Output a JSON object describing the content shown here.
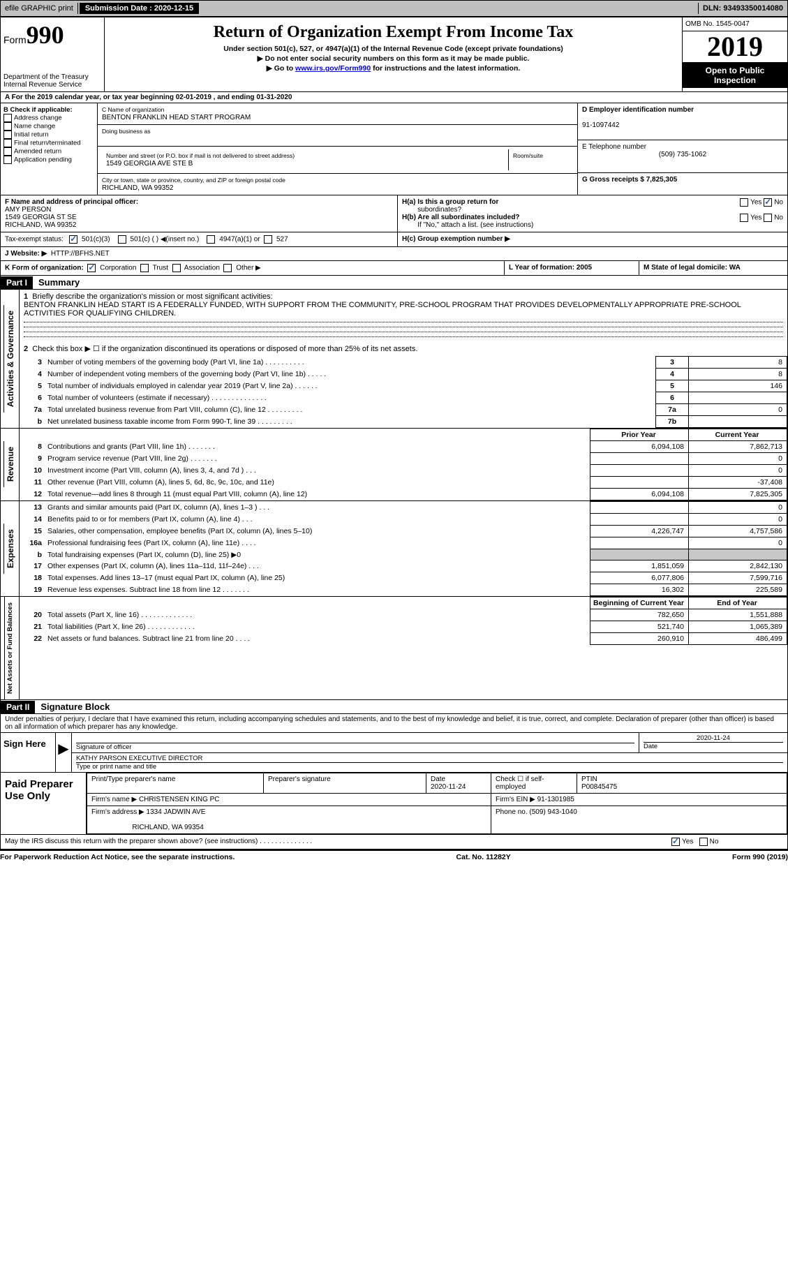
{
  "topbar": {
    "efile": "efile GRAPHIC print",
    "submission_label": "Submission Date : 2020-12-15",
    "dln": "DLN: 93493350014080"
  },
  "header": {
    "form_label": "Form",
    "form_number": "990",
    "dept": "Department of the Treasury",
    "irs": "Internal Revenue Service",
    "title": "Return of Organization Exempt From Income Tax",
    "sub1": "Under section 501(c), 527, or 4947(a)(1) of the Internal Revenue Code (except private foundations)",
    "sub2": "▶ Do not enter social security numbers on this form as it may be made public.",
    "sub3_pre": "▶ Go to ",
    "sub3_link": "www.irs.gov/Form990",
    "sub3_post": " for instructions and the latest information.",
    "omb": "OMB No. 1545-0047",
    "year": "2019",
    "open1": "Open to Public",
    "open2": "Inspection"
  },
  "row_a": "A For the 2019 calendar year, or tax year beginning 02-01-2019   , and ending 01-31-2020",
  "section_b": {
    "title": "B Check if applicable:",
    "opts": [
      "Address change",
      "Name change",
      "Initial return",
      "Final return/terminated",
      "Amended return",
      "Application pending"
    ]
  },
  "section_c": {
    "name_label": "C Name of organization",
    "name": "BENTON FRANKLIN HEAD START PROGRAM",
    "dba": "Doing business as",
    "addr_label": "Number and street (or P.O. box if mail is not delivered to street address)",
    "room": "Room/suite",
    "addr": "1549 GEORGIA AVE STE B",
    "city_label": "City or town, state or province, country, and ZIP or foreign postal code",
    "city": "RICHLAND, WA  99352"
  },
  "section_d": {
    "ein_label": "D Employer identification number",
    "ein": "91-1097442",
    "phone_label": "E Telephone number",
    "phone": "(509) 735-1062",
    "gross_label": "G Gross receipts $ 7,825,305"
  },
  "section_f": {
    "label": "F  Name and address of principal officer:",
    "name": "AMY PERSON",
    "addr1": "1549 GEORGIA ST SE",
    "addr2": "RICHLAND, WA  99352"
  },
  "section_h": {
    "ha": "H(a)  Is this a group return for",
    "ha2": "subordinates?",
    "hb": "H(b)  Are all subordinates included?",
    "hb_note": "If \"No,\" attach a list. (see instructions)",
    "hc": "H(c)  Group exemption number ▶",
    "yes": "Yes",
    "no": "No"
  },
  "section_i": {
    "label": "Tax-exempt status:",
    "opt1": "501(c)(3)",
    "opt2": "501(c) (  ) ◀(insert no.)",
    "opt3": "4947(a)(1) or",
    "opt4": "527"
  },
  "section_j": {
    "label": "J    Website: ▶",
    "val": "HTTP://BFHS.NET"
  },
  "section_k": {
    "label": "K Form of organization:",
    "corp": "Corporation",
    "trust": "Trust",
    "assoc": "Association",
    "other": "Other ▶"
  },
  "section_l": "L Year of formation: 2005",
  "section_m": "M State of legal domicile: WA",
  "part1": {
    "header": "Part I",
    "title": "Summary",
    "side1": "Activities & Governance",
    "side2": "Revenue",
    "side3": "Expenses",
    "side4": "Net Assets or Fund Balances",
    "q1": "Briefly describe the organization's mission or most significant activities:",
    "mission": "BENTON FRANKLIN HEAD START IS A FEDERALLY FUNDED, WITH SUPPORT FROM THE COMMUNITY, PRE-SCHOOL PROGRAM THAT PROVIDES DEVELOPMENTALLY APPROPRIATE PRE-SCHOOL ACTIVITIES FOR QUALIFYING CHILDREN.",
    "q2": "Check this box ▶ ☐  if the organization discontinued its operations or disposed of more than 25% of its net assets.",
    "rows_gov": [
      {
        "n": "3",
        "d": "Number of voting members of the governing body (Part VI, line 1a)  .   .   .   .   .   .   .   .   .   .",
        "box": "3",
        "v": "8"
      },
      {
        "n": "4",
        "d": "Number of independent voting members of the governing body (Part VI, line 1b)  .   .   .   .   .",
        "box": "4",
        "v": "8"
      },
      {
        "n": "5",
        "d": "Total number of individuals employed in calendar year 2019 (Part V, line 2a)  .   .   .   .   .   .",
        "box": "5",
        "v": "146"
      },
      {
        "n": "6",
        "d": "Total number of volunteers (estimate if necessary)   .   .   .   .   .   .   .   .   .   .   .   .   .   .",
        "box": "6",
        "v": ""
      },
      {
        "n": "7a",
        "d": "Total unrelated business revenue from Part VIII, column (C), line 12  .   .   .   .   .   .   .   .   .",
        "box": "7a",
        "v": "0"
      },
      {
        "n": "b",
        "d": "Net unrelated business taxable income from Form 990-T, line 39   .   .   .   .   .   .   .   .   .",
        "box": "7b",
        "v": ""
      }
    ],
    "head_prior": "Prior Year",
    "head_current": "Current Year",
    "rows_rev": [
      {
        "n": "8",
        "d": "Contributions and grants (Part VIII, line 1h)   .   .   .   .   .   .   .",
        "p": "6,094,108",
        "c": "7,862,713"
      },
      {
        "n": "9",
        "d": "Program service revenue (Part VIII, line 2g)   .   .   .   .   .   .   .",
        "p": "",
        "c": "0"
      },
      {
        "n": "10",
        "d": "Investment income (Part VIII, column (A), lines 3, 4, and 7d )   .   .   .",
        "p": "",
        "c": "0"
      },
      {
        "n": "11",
        "d": "Other revenue (Part VIII, column (A), lines 5, 6d, 8c, 9c, 10c, and 11e)",
        "p": "",
        "c": "-37,408"
      },
      {
        "n": "12",
        "d": "Total revenue—add lines 8 through 11 (must equal Part VIII, column (A), line 12)",
        "p": "6,094,108",
        "c": "7,825,305"
      }
    ],
    "rows_exp": [
      {
        "n": "13",
        "d": "Grants and similar amounts paid (Part IX, column (A), lines 1–3 )  .   .   .",
        "p": "",
        "c": "0"
      },
      {
        "n": "14",
        "d": "Benefits paid to or for members (Part IX, column (A), line 4)   .   .   .",
        "p": "",
        "c": "0"
      },
      {
        "n": "15",
        "d": "Salaries, other compensation, employee benefits (Part IX, column (A), lines 5–10)",
        "p": "4,226,747",
        "c": "4,757,586"
      },
      {
        "n": "16a",
        "d": "Professional fundraising fees (Part IX, column (A), line 11e)  .   .   .   .",
        "p": "",
        "c": "0"
      },
      {
        "n": "b",
        "d": "Total fundraising expenses (Part IX, column (D), line 25) ▶0",
        "p": "gray",
        "c": "gray"
      },
      {
        "n": "17",
        "d": "Other expenses (Part IX, column (A), lines 11a–11d, 11f–24e)   .   .   .",
        "p": "1,851,059",
        "c": "2,842,130"
      },
      {
        "n": "18",
        "d": "Total expenses. Add lines 13–17 (must equal Part IX, column (A), line 25)",
        "p": "6,077,806",
        "c": "7,599,716"
      },
      {
        "n": "19",
        "d": "Revenue less expenses. Subtract line 18 from line 12  .   .   .   .   .   .   .",
        "p": "16,302",
        "c": "225,589"
      }
    ],
    "head_beg": "Beginning of Current Year",
    "head_end": "End of Year",
    "rows_net": [
      {
        "n": "20",
        "d": "Total assets (Part X, line 16)  .   .   .   .   .   .   .   .   .   .   .   .   .",
        "p": "782,650",
        "c": "1,551,888"
      },
      {
        "n": "21",
        "d": "Total liabilities (Part X, line 26)  .   .   .   .   .   .   .   .   .   .   .   .",
        "p": "521,740",
        "c": "1,065,389"
      },
      {
        "n": "22",
        "d": "Net assets or fund balances. Subtract line 21 from line 20   .   .   .   .",
        "p": "260,910",
        "c": "486,499"
      }
    ]
  },
  "part2": {
    "header": "Part II",
    "title": "Signature Block",
    "penalty": "Under penalties of perjury, I declare that I have examined this return, including accompanying schedules and statements, and to the best of my knowledge and belief, it is true, correct, and complete. Declaration of preparer (other than officer) is based on all information of which preparer has any knowledge.",
    "sign_here": "Sign Here",
    "sig_officer": "Signature of officer",
    "date": "Date",
    "date_val": "2020-11-24",
    "name_title": "KATHY PARSON  EXECUTIVE DIRECTOR",
    "type_label": "Type or print name and title",
    "paid": "Paid Preparer Use Only",
    "prep_name": "Print/Type preparer's name",
    "prep_sig": "Preparer's signature",
    "prep_date": "Date",
    "prep_date_val": "2020-11-24",
    "check_self": "Check ☐ if self-employed",
    "ptin": "PTIN",
    "ptin_val": "P00845475",
    "firm_name_l": "Firm's name    ▶",
    "firm_name": "CHRISTENSEN KING PC",
    "firm_ein_l": "Firm's EIN ▶",
    "firm_ein": "91-1301985",
    "firm_addr_l": "Firm's address ▶",
    "firm_addr": "1334 JADWIN AVE",
    "firm_city": "RICHLAND, WA  99354",
    "firm_phone_l": "Phone no.",
    "firm_phone": "(509) 943-1040",
    "may_irs": "May the IRS discuss this return with the preparer shown above? (see instructions)   .   .   .   .   .   .   .   .   .   .   .   .   .   .",
    "yes": "Yes",
    "no": "No"
  },
  "footer": {
    "left": "For Paperwork Reduction Act Notice, see the separate instructions.",
    "mid": "Cat. No. 11282Y",
    "right": "Form 990 (2019)"
  }
}
